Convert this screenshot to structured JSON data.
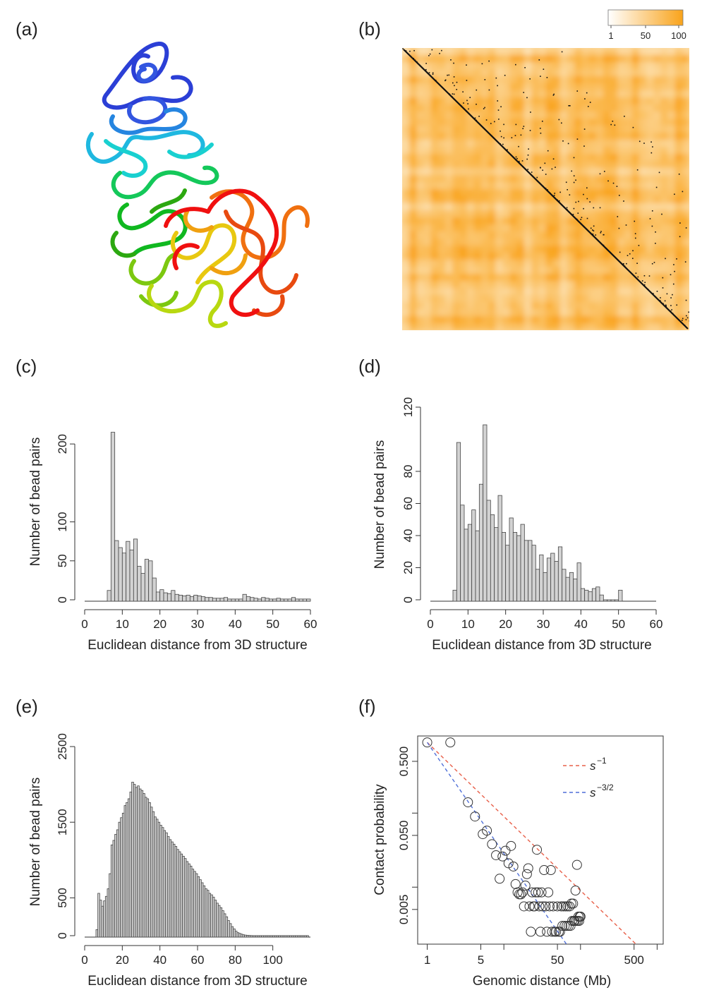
{
  "panels": {
    "a": {
      "label": "(a)"
    },
    "b": {
      "label": "(b)",
      "colorbar": {
        "ticks": [
          "1",
          "50",
          "100"
        ],
        "color_low": "#ffffff",
        "color_high": "#f9a31a"
      }
    },
    "c": {
      "label": "(c)"
    },
    "d": {
      "label": "(d)"
    },
    "e": {
      "label": "(e)"
    },
    "f": {
      "label": "(f)"
    }
  },
  "chart_data": [
    {
      "id": "c",
      "type": "bar",
      "xlabel": "Euclidean distance from 3D structure",
      "ylabel": "Number of bead pairs",
      "xlim": [
        0,
        60
      ],
      "ylim": [
        0,
        240
      ],
      "xticks": [
        "0",
        "10",
        "20",
        "30",
        "40",
        "50",
        "60"
      ],
      "yticks": [
        "0",
        "50",
        "100",
        "200"
      ],
      "bin_start": 6,
      "bin_width": 1,
      "values": [
        12,
        215,
        76,
        67,
        60,
        75,
        64,
        78,
        43,
        34,
        52,
        50,
        28,
        10,
        13,
        9,
        8,
        12,
        7,
        6,
        5,
        6,
        4,
        6,
        5,
        4,
        3,
        3,
        2,
        2,
        2,
        3,
        1,
        1,
        1,
        1,
        7,
        4,
        3,
        2,
        1,
        3,
        2,
        1,
        1,
        2,
        1,
        1,
        1,
        3,
        1,
        1,
        1,
        1
      ]
    },
    {
      "id": "d",
      "type": "bar",
      "xlabel": "Euclidean distance from 3D structure",
      "ylabel": "Number of bead pairs",
      "xlim": [
        0,
        60
      ],
      "ylim": [
        0,
        120
      ],
      "xticks": [
        "0",
        "10",
        "20",
        "30",
        "40",
        "50",
        "60"
      ],
      "yticks": [
        "0",
        "20",
        "40",
        "60",
        "80",
        "120"
      ],
      "bin_start": 6,
      "bin_width": 1,
      "values": [
        6,
        98,
        59,
        44,
        47,
        56,
        43,
        72,
        109,
        62,
        53,
        45,
        65,
        42,
        34,
        51,
        42,
        40,
        47,
        37,
        37,
        34,
        19,
        28,
        17,
        26,
        29,
        24,
        33,
        19,
        14,
        17,
        13,
        23,
        7,
        6,
        5,
        7,
        8,
        3,
        0,
        0,
        0,
        0,
        6
      ]
    },
    {
      "id": "e",
      "type": "bar",
      "xlabel": "Euclidean distance from 3D structure",
      "ylabel": "Number of bead pairs",
      "xlim": [
        0,
        120
      ],
      "ylim": [
        0,
        2500
      ],
      "xticks": [
        "0",
        "20",
        "40",
        "60",
        "80",
        "100"
      ],
      "yticks": [
        "0",
        "500",
        "1500",
        "2500"
      ],
      "bin_start": 6,
      "bin_width": 1,
      "values": [
        80,
        560,
        470,
        390,
        460,
        520,
        620,
        820,
        1200,
        1260,
        1340,
        1400,
        1500,
        1560,
        1620,
        1720,
        1760,
        1810,
        1900,
        2030,
        2000,
        1960,
        1980,
        1940,
        1920,
        1880,
        1830,
        1810,
        1760,
        1700,
        1640,
        1570,
        1540,
        1500,
        1460,
        1430,
        1390,
        1360,
        1310,
        1270,
        1240,
        1210,
        1180,
        1140,
        1110,
        1080,
        1050,
        1020,
        980,
        950,
        920,
        880,
        850,
        820,
        780,
        740,
        700,
        660,
        620,
        600,
        560,
        540,
        510,
        470,
        430,
        400,
        370,
        330,
        290,
        250,
        200,
        160,
        120,
        90,
        60,
        40,
        30,
        20,
        12,
        8,
        5,
        3,
        2,
        1,
        1,
        1,
        1,
        1,
        1,
        1,
        1,
        1,
        1,
        1,
        1,
        1,
        1,
        1,
        1,
        1,
        1,
        1,
        1,
        1,
        1,
        1,
        1,
        1,
        1,
        1,
        1,
        1,
        1
      ]
    },
    {
      "id": "f",
      "type": "scatter",
      "xlabel": "Genomic distance (Mb)",
      "ylabel": "Contact probability",
      "xscale": "log",
      "yscale": "log",
      "xlim": [
        0.75,
        1200
      ],
      "ylim": [
        0.0017,
        1.1
      ],
      "xticks": [
        "1",
        "5",
        "50",
        "500"
      ],
      "yticks": [
        "0.005",
        "0.050",
        "0.500"
      ],
      "legend": {
        "placement": "top-right",
        "entries": [
          {
            "label": "s",
            "superscript": "−1",
            "color": "#e8604a"
          },
          {
            "label": "s",
            "superscript": "−3/2",
            "color": "#4f6fd8"
          }
        ]
      },
      "lines": [
        {
          "exponent": -1,
          "x0": 1,
          "y0": 0.9,
          "color": "#e8604a"
        },
        {
          "exponent": -1.5,
          "x0": 1,
          "y0": 0.9,
          "color": "#4f6fd8"
        }
      ],
      "points": [
        [
          1,
          0.9
        ],
        [
          2,
          0.9
        ],
        [
          3.4,
          0.14
        ],
        [
          4.2,
          0.09
        ],
        [
          5.3,
          0.052
        ],
        [
          6,
          0.058
        ],
        [
          7,
          0.038
        ],
        [
          7.9,
          0.027
        ],
        [
          8.8,
          0.013
        ],
        [
          9.6,
          0.026
        ],
        [
          10.5,
          0.031
        ],
        [
          11.5,
          0.021
        ],
        [
          12.4,
          0.036
        ],
        [
          13.3,
          0.019
        ],
        [
          14.2,
          0.011
        ],
        [
          15.1,
          0.0085
        ],
        [
          15.9,
          0.008
        ],
        [
          16.7,
          0.008
        ],
        [
          17.5,
          0.0085
        ],
        [
          18.3,
          0.0055
        ],
        [
          19.1,
          0.0105
        ],
        [
          20,
          0.015
        ],
        [
          20.8,
          0.018
        ],
        [
          21.6,
          0.0055
        ],
        [
          22.5,
          0.0025
        ],
        [
          23.4,
          0.0085
        ],
        [
          24.3,
          0.0055
        ],
        [
          25.2,
          0.0055
        ],
        [
          26,
          0.0085
        ],
        [
          27,
          0.032
        ],
        [
          28,
          0.0085
        ],
        [
          29,
          0.0055
        ],
        [
          30,
          0.0025
        ],
        [
          31,
          0.0085
        ],
        [
          32,
          0.0055
        ],
        [
          33.5,
          0.017
        ],
        [
          35,
          0.0055
        ],
        [
          36.5,
          0.0025
        ],
        [
          38,
          0.0085
        ],
        [
          39.5,
          0.0055
        ],
        [
          41,
          0.017
        ],
        [
          42.5,
          0.0025
        ],
        [
          44,
          0.0055
        ],
        [
          46,
          0.0025
        ],
        [
          48,
          0.0025
        ],
        [
          50,
          0.0055
        ],
        [
          52,
          0.0025
        ],
        [
          54,
          0.0025
        ],
        [
          56,
          0.0055
        ],
        [
          58,
          0.003
        ],
        [
          60,
          0.0055
        ],
        [
          62,
          0.003
        ],
        [
          64,
          0.0055
        ],
        [
          66,
          0.003
        ],
        [
          68,
          0.0055
        ],
        [
          70,
          0.003
        ],
        [
          72,
          0.0055
        ],
        [
          74,
          0.003
        ],
        [
          76,
          0.006
        ],
        [
          78,
          0.0035
        ],
        [
          80,
          0.006
        ],
        [
          82,
          0.0035
        ],
        [
          84,
          0.0035
        ],
        [
          86,
          0.009
        ],
        [
          88,
          0.0035
        ],
        [
          90,
          0.02
        ],
        [
          92,
          0.0035
        ],
        [
          94,
          0.004
        ],
        [
          96,
          0.0035
        ],
        [
          98,
          0.004
        ],
        [
          100,
          0.004
        ]
      ]
    }
  ]
}
